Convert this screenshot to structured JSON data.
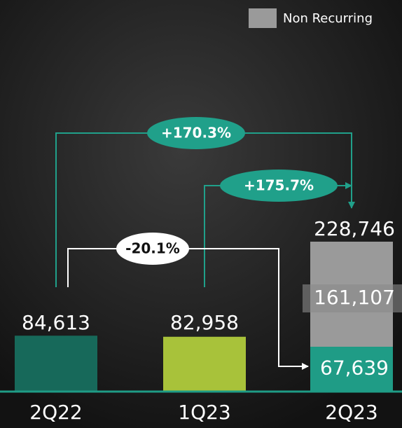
{
  "chart_data": {
    "type": "stacked-bar",
    "categories": [
      "2Q22",
      "1Q23",
      "2Q23"
    ],
    "series": [
      {
        "colors": [
          "#17695a",
          "#a8c23a",
          "#1f9c86"
        ],
        "values": [
          84613,
          82958,
          67639
        ],
        "value_labels": [
          "84,613",
          "82,958",
          "67,639"
        ]
      },
      {
        "name": "Non Recurring",
        "color": "#9a9a9a",
        "values": [
          null,
          null,
          161107
        ],
        "value_labels": [
          null,
          null,
          "161,107"
        ]
      }
    ],
    "totals": [
      null,
      null,
      228746
    ],
    "total_labels": [
      null,
      null,
      "228,746"
    ],
    "annotations": [
      "+170.3%",
      "+175.7%",
      "-20.1%"
    ],
    "legend": "top-right"
  }
}
